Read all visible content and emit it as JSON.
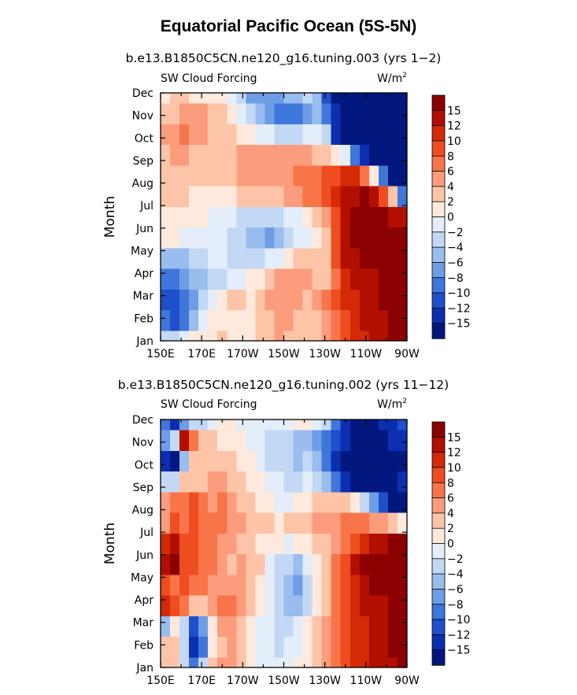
{
  "title": "Equatorial Pacific Ocean (5S-5N)",
  "colorbar": {
    "levels": [
      15,
      12,
      10,
      8,
      6,
      4,
      2,
      0,
      -2,
      -4,
      -6,
      -8,
      -10,
      -12,
      -15
    ],
    "labels": [
      "15",
      "12",
      "10",
      "8",
      "6",
      "4",
      "2",
      "0",
      "−2",
      "−4",
      "−6",
      "−8",
      "−10",
      "−12",
      "−15"
    ],
    "colors": [
      "#8b0000",
      "#b30f00",
      "#d42a05",
      "#ee4d20",
      "#f8754a",
      "#fb9c7c",
      "#fdc4a8",
      "#fee9dc",
      "#e3eefa",
      "#c3d8f5",
      "#98bdee",
      "#6d9de6",
      "#3f76da",
      "#1f4fcb",
      "#0c2fb2",
      "#02187f"
    ]
  },
  "chart_data": [
    {
      "type": "heatmap",
      "subtitle": "b.e13.B1850C5CN.ne120_g16.tuning.003 (yrs 1−2)",
      "left_label": "SW Cloud Forcing",
      "right_label": "W/m",
      "right_label_sup": "2",
      "ylabel": "Month",
      "x_ticks": [
        "150E",
        "170E",
        "170W",
        "150W",
        "130W",
        "110W",
        "90W"
      ],
      "y_ticks": [
        "Jan",
        "Feb",
        "Mar",
        "Apr",
        "May",
        "Jun",
        "Jul",
        "Aug",
        "Sep",
        "Oct",
        "Nov",
        "Dec"
      ],
      "x_range_deg_east": [
        150,
        270
      ],
      "values": [
        [
          -2,
          -3,
          -1,
          1,
          2,
          2,
          3,
          2,
          2,
          2,
          3,
          4,
          5,
          4,
          3,
          3,
          4,
          5,
          7,
          9,
          11,
          12,
          13,
          15,
          16,
          16
        ],
        [
          -9,
          -10,
          -9,
          -5,
          -1,
          1,
          2,
          2,
          1,
          2,
          3,
          4,
          5,
          5,
          4,
          3,
          4,
          6,
          8,
          10,
          12,
          13,
          14,
          15,
          16,
          16
        ],
        [
          -10,
          -11,
          -8,
          -6,
          -3,
          0,
          2,
          3,
          3,
          2,
          3,
          5,
          6,
          5,
          5,
          4,
          5,
          7,
          9,
          11,
          12,
          14,
          15,
          16,
          16,
          16
        ],
        [
          -8,
          -8,
          -6,
          -5,
          -4,
          -3,
          -2,
          -1,
          0,
          1,
          2,
          4,
          5,
          5,
          5,
          5,
          4,
          4,
          8,
          11,
          13,
          14,
          15,
          16,
          16,
          16
        ],
        [
          -5,
          -5,
          -4,
          -3,
          -2,
          -1,
          -1,
          -2,
          -2,
          -3,
          -2,
          -1,
          0,
          2,
          3,
          3,
          3,
          3,
          9,
          13,
          15,
          16,
          16,
          16,
          16,
          16
        ],
        [
          1,
          1,
          0,
          0,
          -1,
          -1,
          -1,
          -2,
          -3,
          -4,
          -5,
          -6,
          -5,
          -3,
          -1,
          0,
          2,
          4,
          10,
          15,
          16,
          16,
          16,
          16,
          16,
          16
        ],
        [
          2,
          2,
          2,
          1,
          1,
          0,
          0,
          -1,
          -2,
          -2,
          -3,
          -3,
          -2,
          -1,
          0,
          1,
          3,
          5,
          10,
          15,
          16,
          16,
          16,
          16,
          15,
          13
        ],
        [
          3,
          3,
          3,
          2,
          2,
          2,
          2,
          2,
          3,
          3,
          3,
          3,
          4,
          5,
          6,
          7,
          8,
          10,
          12,
          14,
          14,
          16,
          15,
          10,
          3,
          -8
        ],
        [
          3,
          3,
          4,
          3,
          3,
          3,
          4,
          4,
          5,
          6,
          6,
          6,
          6,
          6,
          7,
          7,
          8,
          9,
          10,
          11,
          12,
          8,
          1,
          -8,
          -16,
          -16
        ],
        [
          4,
          5,
          5,
          4,
          4,
          3,
          4,
          4,
          5,
          5,
          5,
          5,
          5,
          5,
          5,
          5,
          4,
          3,
          2,
          -1,
          -8,
          -14,
          -16,
          -16,
          -16,
          -16
        ],
        [
          5,
          6,
          7,
          6,
          5,
          4,
          3,
          3,
          2,
          1,
          0,
          -1,
          -2,
          -2,
          -2,
          -1,
          0,
          -2,
          -12,
          -16,
          -16,
          -16,
          -16,
          -16,
          -16,
          -16
        ],
        [
          3,
          4,
          6,
          6,
          5,
          4,
          3,
          2,
          0,
          -2,
          -5,
          -7,
          -8,
          -9,
          -9,
          -6,
          -5,
          -9,
          -13,
          -16,
          -16,
          -16,
          -16,
          -16,
          -16,
          -16
        ],
        [
          2,
          3,
          3,
          2,
          2,
          2,
          2,
          -1,
          -3,
          -6,
          -6,
          -7,
          -6,
          -5,
          -4,
          -3,
          -5,
          -10,
          -16,
          -16,
          -16,
          -16,
          -16,
          -16,
          -16,
          -16
        ]
      ]
    },
    {
      "type": "heatmap",
      "subtitle": "b.e13.B1850C5CN.ne120_g16.tuning.002 (yrs 11−12)",
      "left_label": "SW Cloud Forcing",
      "right_label": "W/m",
      "right_label_sup": "2",
      "ylabel": "Month",
      "x_ticks": [
        "150E",
        "170E",
        "170W",
        "150W",
        "130W",
        "110W",
        "90W"
      ],
      "y_ticks": [
        "Jan",
        "Feb",
        "Mar",
        "Apr",
        "May",
        "Jun",
        "Jul",
        "Aug",
        "Sep",
        "Oct",
        "Nov",
        "Dec"
      ],
      "x_range_deg_east": [
        150,
        270
      ],
      "values": [
        [
          3,
          3,
          -3,
          -9,
          -3,
          3,
          5,
          5,
          3,
          1,
          0,
          -1,
          -1,
          0,
          1,
          2,
          3,
          5,
          7,
          9,
          11,
          12,
          13,
          14,
          15,
          16
        ],
        [
          4,
          3,
          -3,
          -12,
          -8,
          1,
          4,
          5,
          3,
          1,
          0,
          -1,
          -2,
          -1,
          0,
          1,
          3,
          5,
          7,
          9,
          11,
          12,
          13,
          15,
          16,
          16
        ],
        [
          -4,
          2,
          -2,
          -10,
          -7,
          2,
          5,
          6,
          4,
          2,
          0,
          -1,
          -2,
          -2,
          -1,
          1,
          3,
          5,
          7,
          9,
          11,
          12,
          14,
          15,
          16,
          16
        ],
        [
          11,
          9,
          7,
          4,
          3,
          5,
          7,
          7,
          6,
          4,
          2,
          0,
          -2,
          -4,
          -5,
          -2,
          1,
          4,
          7,
          9,
          11,
          13,
          14,
          15,
          16,
          16
        ],
        [
          9,
          8,
          9,
          8,
          7,
          6,
          6,
          5,
          5,
          4,
          2,
          0,
          -2,
          -4,
          -6,
          -3,
          1,
          4,
          8,
          10,
          12,
          14,
          16,
          16,
          16,
          16
        ],
        [
          14,
          16,
          10,
          10,
          8,
          7,
          6,
          4,
          5,
          4,
          3,
          0,
          -2,
          -3,
          -4,
          -1,
          2,
          4,
          7,
          10,
          13,
          16,
          16,
          16,
          16,
          16
        ],
        [
          12,
          15,
          10,
          9,
          8,
          7,
          6,
          5,
          4,
          4,
          2,
          1,
          1,
          0,
          1,
          2,
          3,
          4,
          6,
          8,
          10,
          12,
          13,
          15,
          16,
          16
        ],
        [
          6,
          9,
          8,
          10,
          7,
          7,
          8,
          6,
          5,
          4,
          4,
          3,
          2,
          3,
          3,
          4,
          5,
          6,
          6,
          7,
          8,
          7,
          6,
          5,
          4,
          1
        ],
        [
          5,
          7,
          8,
          9,
          7,
          6,
          7,
          5,
          4,
          3,
          2,
          1,
          0,
          0,
          1,
          2,
          3,
          4,
          4,
          3,
          2,
          -2,
          -6,
          -11,
          -16,
          -16
        ],
        [
          -3,
          -2,
          3,
          3,
          4,
          5,
          5,
          4,
          3,
          2,
          1,
          0,
          -1,
          -2,
          -2,
          -1,
          -3,
          -5,
          -9,
          -13,
          -16,
          -16,
          -16,
          -16,
          -16,
          -14
        ],
        [
          -13,
          -16,
          -5,
          3,
          3,
          3,
          4,
          3,
          2,
          1,
          0,
          -2,
          -2,
          -3,
          -4,
          -3,
          -4,
          -8,
          -13,
          -16,
          -16,
          -16,
          -16,
          -16,
          -16,
          -16
        ],
        [
          -7,
          -2,
          13,
          7,
          3,
          3,
          2,
          2,
          1,
          0,
          -1,
          -2,
          -2,
          -3,
          -4,
          -5,
          -6,
          -8,
          -10,
          -12,
          -16,
          -16,
          -16,
          -16,
          -14,
          -12
        ],
        [
          -9,
          -14,
          -7,
          -3,
          -3,
          0,
          2,
          1,
          0,
          0,
          -1,
          0,
          0,
          0,
          1,
          2,
          -1,
          -3,
          -8,
          -14,
          -15,
          -16,
          -16,
          -14,
          -12,
          -10
        ]
      ]
    }
  ]
}
